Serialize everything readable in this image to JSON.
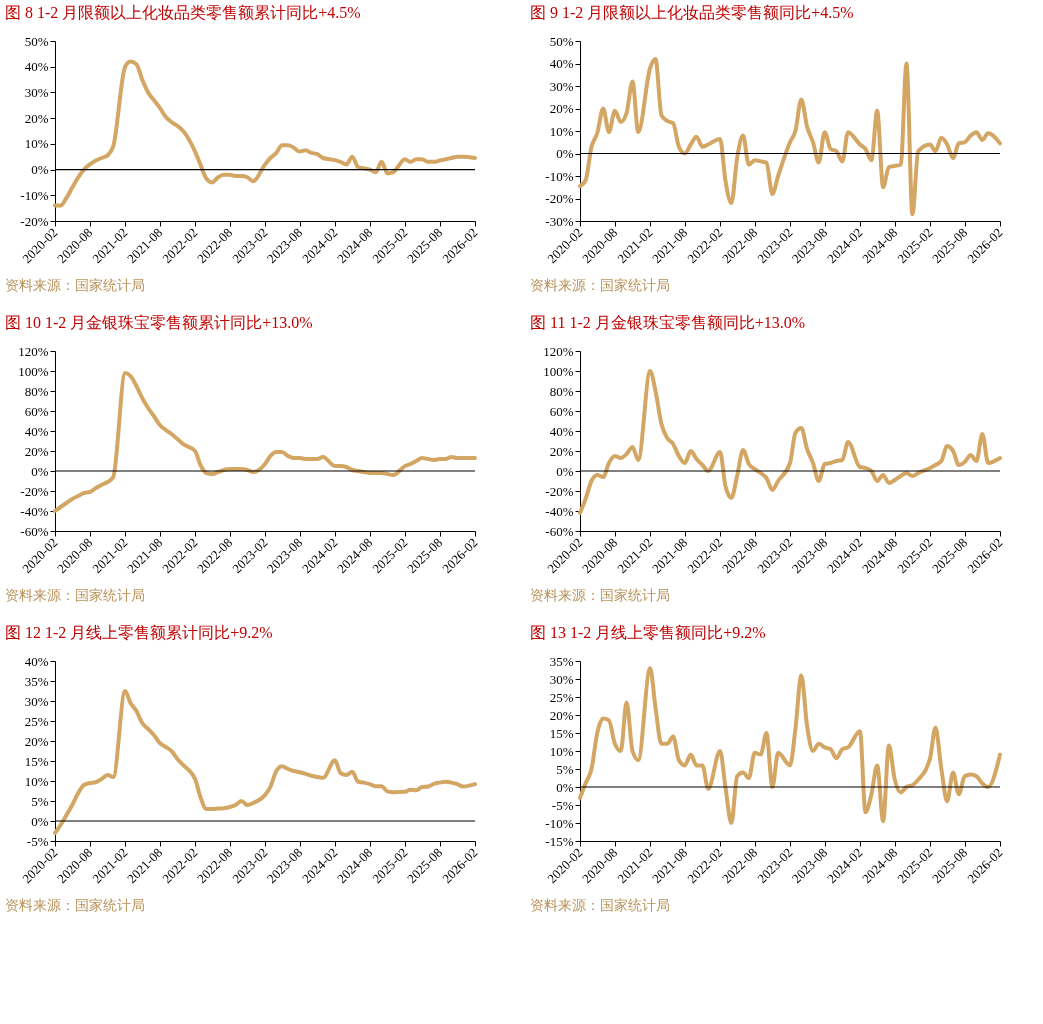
{
  "chart_data": [
    {
      "type": "line",
      "title": "图 8 1-2 月限额以上化妆品类零售额累计同比+4.5%",
      "annotations": [
        "资料来源：国家统计局"
      ],
      "x": [
        "2020-02",
        "2020-03",
        "2020-04",
        "2020-05",
        "2020-06",
        "2020-07",
        "2020-08",
        "2020-09",
        "2020-10",
        "2020-11",
        "2020-12",
        "2021-02",
        "2021-03",
        "2021-04",
        "2021-05",
        "2021-06",
        "2021-07",
        "2021-08",
        "2021-09",
        "2021-10",
        "2021-11",
        "2021-12",
        "2022-02",
        "2022-03",
        "2022-04",
        "2022-05",
        "2022-06",
        "2022-07",
        "2022-08",
        "2022-09",
        "2022-10",
        "2022-11",
        "2022-12",
        "2023-02",
        "2023-03",
        "2023-04",
        "2023-05",
        "2023-06",
        "2023-07",
        "2023-08",
        "2023-09",
        "2023-10",
        "2023-11",
        "2023-12",
        "2024-02",
        "2024-03",
        "2024-04",
        "2024-05",
        "2024-06",
        "2024-07",
        "2024-08",
        "2024-09",
        "2024-10",
        "2024-11",
        "2024-12",
        "2025-02",
        "2025-03",
        "2025-04",
        "2025-05",
        "2025-06",
        "2025-07",
        "2025-08",
        "2025-09",
        "2025-10",
        "2025-11",
        "2025-12",
        "2026-02"
      ],
      "series": [
        {
          "color": "#d4a664",
          "values": [
            -14,
            -14,
            -11,
            -7,
            -3,
            0,
            2,
            3.5,
            4.5,
            5.5,
            9,
            40,
            42,
            41,
            35,
            30,
            27,
            24,
            20.5,
            18.5,
            17,
            15,
            7,
            2,
            -3.5,
            -5,
            -3,
            -2,
            -2,
            -2.5,
            -2.5,
            -3,
            -4.5,
            2,
            4.5,
            6.5,
            9.5,
            9.5,
            8.5,
            7,
            7.5,
            6.5,
            6,
            4.5,
            3.7,
            3,
            2,
            5,
            1,
            0.5,
            0,
            -1,
            3,
            -1.5,
            -1,
            4,
            3,
            4,
            4,
            3,
            3,
            3.5,
            4,
            4.5,
            5,
            5,
            4.5
          ]
        }
      ],
      "xlim": [
        "2020-02",
        "2026-02"
      ],
      "xticks": [
        "2020-02",
        "2020-08",
        "2021-02",
        "2021-08",
        "2022-02",
        "2022-08",
        "2023-02",
        "2023-08",
        "2024-02",
        "2024-08",
        "2025-02",
        "2025-08",
        "2026-02"
      ],
      "ylim": [
        -20,
        50
      ],
      "yticks": [
        {
          "value": -20,
          "label": "-20%"
        },
        {
          "value": -10,
          "label": "-10%"
        },
        {
          "value": 0,
          "label": "0%"
        },
        {
          "value": 10,
          "label": "10%"
        },
        {
          "value": 20,
          "label": "20%"
        },
        {
          "value": 30,
          "label": "30%"
        },
        {
          "value": 40,
          "label": "40%"
        },
        {
          "value": 50,
          "label": "50%"
        }
      ]
    },
    {
      "type": "line",
      "title": "图 9 1-2 月限额以上化妆品类零售额同比+4.5%",
      "annotations": [
        "资料来源：国家统计局"
      ],
      "x": [
        "2020-02",
        "2020-03",
        "2020-04",
        "2020-05",
        "2020-06",
        "2020-07",
        "2020-08",
        "2020-09",
        "2020-10",
        "2020-11",
        "2020-12",
        "2021-02",
        "2021-03",
        "2021-04",
        "2021-05",
        "2021-06",
        "2021-07",
        "2021-08",
        "2021-09",
        "2021-10",
        "2021-11",
        "2021-12",
        "2022-02",
        "2022-03",
        "2022-04",
        "2022-05",
        "2022-06",
        "2022-07",
        "2022-08",
        "2022-09",
        "2022-10",
        "2022-11",
        "2022-12",
        "2023-02",
        "2023-03",
        "2023-04",
        "2023-05",
        "2023-06",
        "2023-07",
        "2023-08",
        "2023-09",
        "2023-10",
        "2023-11",
        "2023-12",
        "2024-02",
        "2024-03",
        "2024-04",
        "2024-05",
        "2024-06",
        "2024-07",
        "2024-08",
        "2024-09",
        "2024-10",
        "2024-11",
        "2024-12",
        "2025-02",
        "2025-03",
        "2025-04",
        "2025-05",
        "2025-06",
        "2025-07",
        "2025-08",
        "2025-09",
        "2025-10",
        "2025-11",
        "2025-12",
        "2026-02"
      ],
      "series": [
        {
          "color": "#d4a664",
          "values": [
            -14.5,
            -12,
            3,
            9,
            20,
            9.5,
            19,
            14,
            18,
            32,
            9.5,
            38,
            42,
            17,
            14.5,
            13.5,
            3,
            0,
            4,
            7.5,
            3,
            4,
            6.5,
            -12,
            -22,
            -2,
            8,
            -5,
            -3,
            -3.5,
            -4,
            -18,
            -10,
            5,
            10,
            24,
            12,
            5,
            -4,
            9.5,
            2,
            1,
            -3.5,
            9.5,
            4,
            2,
            -3,
            19,
            -15,
            -6,
            -5.5,
            -5,
            40,
            -27,
            1,
            4,
            1,
            7,
            4,
            -2,
            4.5,
            5,
            8,
            9.5,
            6,
            9,
            4.5
          ]
        }
      ],
      "xlim": [
        "2020-02",
        "2026-02"
      ],
      "xticks": [
        "2020-02",
        "2020-08",
        "2021-02",
        "2021-08",
        "2022-02",
        "2022-08",
        "2023-02",
        "2023-08",
        "2024-02",
        "2024-08",
        "2025-02",
        "2025-08",
        "2026-02"
      ],
      "ylim": [
        -30,
        50
      ],
      "yticks": [
        {
          "value": -30,
          "label": "-30%"
        },
        {
          "value": -20,
          "label": "-20%"
        },
        {
          "value": -10,
          "label": "-10%"
        },
        {
          "value": 0,
          "label": "0%"
        },
        {
          "value": 10,
          "label": "10%"
        },
        {
          "value": 20,
          "label": "20%"
        },
        {
          "value": 30,
          "label": "30%"
        },
        {
          "value": 40,
          "label": "40%"
        },
        {
          "value": 50,
          "label": "50%"
        }
      ]
    },
    {
      "type": "line",
      "title": "图 10 1-2 月金银珠宝零售额累计同比+13.0%",
      "annotations": [
        "资料来源：国家统计局"
      ],
      "x": [
        "2020-02",
        "2020-03",
        "2020-04",
        "2020-05",
        "2020-06",
        "2020-07",
        "2020-08",
        "2020-09",
        "2020-10",
        "2020-11",
        "2020-12",
        "2021-02",
        "2021-03",
        "2021-04",
        "2021-05",
        "2021-06",
        "2021-07",
        "2021-08",
        "2021-09",
        "2021-10",
        "2021-11",
        "2021-12",
        "2022-02",
        "2022-03",
        "2022-04",
        "2022-05",
        "2022-06",
        "2022-07",
        "2022-08",
        "2022-09",
        "2022-10",
        "2022-11",
        "2022-12",
        "2023-02",
        "2023-03",
        "2023-04",
        "2023-05",
        "2023-06",
        "2023-07",
        "2023-08",
        "2023-09",
        "2023-10",
        "2023-11",
        "2023-12",
        "2024-02",
        "2024-03",
        "2024-04",
        "2024-05",
        "2024-06",
        "2024-07",
        "2024-08",
        "2024-09",
        "2024-10",
        "2024-11",
        "2024-12",
        "2025-02",
        "2025-03",
        "2025-04",
        "2025-05",
        "2025-06",
        "2025-07",
        "2025-08",
        "2025-09",
        "2025-10",
        "2025-11",
        "2025-12",
        "2026-02"
      ],
      "series": [
        {
          "color": "#d4a664",
          "values": [
            -40,
            -36,
            -32,
            -28,
            -25,
            -22,
            -21,
            -17,
            -14,
            -11,
            -6,
            98,
            95,
            85,
            73,
            63,
            55,
            46,
            41,
            37,
            32,
            27,
            20,
            6,
            -2,
            -3,
            -1,
            1,
            2,
            2,
            2,
            1,
            -1,
            7,
            15,
            19,
            19,
            15,
            13,
            13,
            12,
            12,
            12,
            14,
            5,
            5,
            4,
            1,
            0,
            -1,
            -2,
            -2,
            -2,
            -3,
            -4,
            5,
            7,
            10,
            13,
            12,
            11,
            12,
            12,
            14,
            13,
            13,
            13
          ]
        }
      ],
      "xlim": [
        "2020-02",
        "2026-02"
      ],
      "xticks": [
        "2020-02",
        "2020-08",
        "2021-02",
        "2021-08",
        "2022-02",
        "2022-08",
        "2023-02",
        "2023-08",
        "2024-02",
        "2024-08",
        "2025-02",
        "2025-08",
        "2026-02"
      ],
      "ylim": [
        -60,
        120
      ],
      "yticks": [
        {
          "value": -60,
          "label": "-60%"
        },
        {
          "value": -40,
          "label": "-40%"
        },
        {
          "value": -20,
          "label": "-20%"
        },
        {
          "value": 0,
          "label": "0%"
        },
        {
          "value": 20,
          "label": "20%"
        },
        {
          "value": 40,
          "label": "40%"
        },
        {
          "value": 60,
          "label": "60%"
        },
        {
          "value": 80,
          "label": "80%"
        },
        {
          "value": 100,
          "label": "100%"
        },
        {
          "value": 120,
          "label": "120%"
        }
      ]
    },
    {
      "type": "line",
      "title": "图 11 1-2 月金银珠宝零售额同比+13.0%",
      "annotations": [
        "资料来源：国家统计局"
      ],
      "x": [
        "2020-02",
        "2020-03",
        "2020-04",
        "2020-05",
        "2020-06",
        "2020-07",
        "2020-08",
        "2020-09",
        "2020-10",
        "2020-11",
        "2020-12",
        "2021-02",
        "2021-03",
        "2021-04",
        "2021-05",
        "2021-06",
        "2021-07",
        "2021-08",
        "2021-09",
        "2021-10",
        "2021-11",
        "2021-12",
        "2022-02",
        "2022-03",
        "2022-04",
        "2022-05",
        "2022-06",
        "2022-07",
        "2022-08",
        "2022-09",
        "2022-10",
        "2022-11",
        "2022-12",
        "2023-02",
        "2023-03",
        "2023-04",
        "2023-05",
        "2023-06",
        "2023-07",
        "2023-08",
        "2023-09",
        "2023-10",
        "2023-11",
        "2023-12",
        "2024-02",
        "2024-03",
        "2024-04",
        "2024-05",
        "2024-06",
        "2024-07",
        "2024-08",
        "2024-09",
        "2024-10",
        "2024-11",
        "2024-12",
        "2025-02",
        "2025-03",
        "2025-04",
        "2025-05",
        "2025-06",
        "2025-07",
        "2025-08",
        "2025-09",
        "2025-10",
        "2025-11",
        "2025-12",
        "2026-02"
      ],
      "series": [
        {
          "color": "#d4a664",
          "values": [
            -42,
            -28,
            -10,
            -4,
            -6,
            8,
            15,
            13,
            17,
            24,
            11,
            100,
            80,
            47,
            33,
            27,
            15,
            8,
            20,
            12,
            6,
            0,
            19,
            -15,
            -27,
            -5,
            21,
            7,
            2,
            -2,
            -7,
            -19,
            -10,
            8,
            38,
            43,
            22,
            8,
            -10,
            7,
            8,
            10,
            11,
            29,
            4,
            3,
            0,
            -10,
            -4,
            -12,
            -9,
            -5,
            -2,
            -5,
            -2,
            3,
            6,
            10,
            25,
            20,
            6,
            9,
            16,
            10,
            37,
            8,
            13
          ]
        }
      ],
      "xlim": [
        "2020-02",
        "2026-02"
      ],
      "xticks": [
        "2020-02",
        "2020-08",
        "2021-02",
        "2021-08",
        "2022-02",
        "2022-08",
        "2023-02",
        "2023-08",
        "2024-02",
        "2024-08",
        "2025-02",
        "2025-08",
        "2026-02"
      ],
      "ylim": [
        -60,
        120
      ],
      "yticks": [
        {
          "value": -60,
          "label": "-60%"
        },
        {
          "value": -40,
          "label": "-40%"
        },
        {
          "value": -20,
          "label": "-20%"
        },
        {
          "value": 0,
          "label": "0%"
        },
        {
          "value": 20,
          "label": "20%"
        },
        {
          "value": 40,
          "label": "40%"
        },
        {
          "value": 60,
          "label": "60%"
        },
        {
          "value": 80,
          "label": "80%"
        },
        {
          "value": 100,
          "label": "100%"
        },
        {
          "value": 120,
          "label": "120%"
        }
      ]
    },
    {
      "type": "line",
      "title": "图 12 1-2 月线上零售额累计同比+9.2%",
      "annotations": [
        "资料来源：国家统计局"
      ],
      "x": [
        "2020-02",
        "2020-03",
        "2020-04",
        "2020-05",
        "2020-06",
        "2020-07",
        "2020-08",
        "2020-09",
        "2020-10",
        "2020-11",
        "2020-12",
        "2021-02",
        "2021-03",
        "2021-04",
        "2021-05",
        "2021-06",
        "2021-07",
        "2021-08",
        "2021-09",
        "2021-10",
        "2021-11",
        "2021-12",
        "2022-02",
        "2022-03",
        "2022-04",
        "2022-05",
        "2022-06",
        "2022-07",
        "2022-08",
        "2022-09",
        "2022-10",
        "2022-11",
        "2022-12",
        "2023-02",
        "2023-03",
        "2023-04",
        "2023-05",
        "2023-06",
        "2023-07",
        "2023-08",
        "2023-09",
        "2023-10",
        "2023-11",
        "2023-12",
        "2024-02",
        "2024-03",
        "2024-04",
        "2024-05",
        "2024-06",
        "2024-07",
        "2024-08",
        "2024-09",
        "2024-10",
        "2024-11",
        "2024-12",
        "2025-02",
        "2025-03",
        "2025-04",
        "2025-05",
        "2025-06",
        "2025-07",
        "2025-08",
        "2025-09",
        "2025-10",
        "2025-11",
        "2025-12",
        "2026-02"
      ],
      "series": [
        {
          "color": "#d4a664",
          "values": [
            -3,
            -1,
            1.5,
            4,
            7,
            9,
            9.5,
            9.7,
            10.5,
            11.5,
            11,
            32.5,
            29.5,
            27.5,
            24.5,
            23,
            21.5,
            19.5,
            18.5,
            17.5,
            15.5,
            14,
            10.5,
            6,
            3,
            3,
            3.1,
            3.2,
            3.5,
            4,
            5,
            4,
            4.5,
            6.5,
            8.5,
            12.5,
            13.7,
            13,
            12.5,
            12.2,
            11.8,
            11.3,
            11,
            10.8,
            15.2,
            12,
            11.5,
            12.3,
            9.8,
            9.6,
            9.2,
            8.7,
            8.7,
            7.4,
            7.2,
            7.3,
            7.8,
            7.7,
            8.5,
            8.6,
            9.3,
            9.6,
            9.8,
            9.6,
            9.2,
            8.6,
            9.2
          ]
        }
      ],
      "xlim": [
        "2020-02",
        "2026-02"
      ],
      "xticks": [
        "2020-02",
        "2020-08",
        "2021-02",
        "2021-08",
        "2022-02",
        "2022-08",
        "2023-02",
        "2023-08",
        "2024-02",
        "2024-08",
        "2025-02",
        "2025-08",
        "2026-02"
      ],
      "ylim": [
        -5,
        40
      ],
      "yticks": [
        {
          "value": -5,
          "label": "-5%"
        },
        {
          "value": 0,
          "label": "0%"
        },
        {
          "value": 5,
          "label": "5%"
        },
        {
          "value": 10,
          "label": "10%"
        },
        {
          "value": 15,
          "label": "15%"
        },
        {
          "value": 20,
          "label": "20%"
        },
        {
          "value": 25,
          "label": "25%"
        },
        {
          "value": 30,
          "label": "30%"
        },
        {
          "value": 35,
          "label": "35%"
        },
        {
          "value": 40,
          "label": "40%"
        }
      ]
    },
    {
      "type": "line",
      "title": "图 13 1-2 月线上零售额同比+9.2%",
      "annotations": [
        "资料来源：国家统计局"
      ],
      "x": [
        "2020-02",
        "2020-03",
        "2020-04",
        "2020-05",
        "2020-06",
        "2020-07",
        "2020-08",
        "2020-09",
        "2020-10",
        "2020-11",
        "2020-12",
        "2021-02",
        "2021-03",
        "2021-04",
        "2021-05",
        "2021-06",
        "2021-07",
        "2021-08",
        "2021-09",
        "2021-10",
        "2021-11",
        "2021-12",
        "2022-02",
        "2022-03",
        "2022-04",
        "2022-05",
        "2022-06",
        "2022-07",
        "2022-08",
        "2022-09",
        "2022-10",
        "2022-11",
        "2022-12",
        "2023-02",
        "2023-03",
        "2023-04",
        "2023-05",
        "2023-06",
        "2023-07",
        "2023-08",
        "2023-09",
        "2023-10",
        "2023-11",
        "2023-12",
        "2024-02",
        "2024-03",
        "2024-04",
        "2024-05",
        "2024-06",
        "2024-07",
        "2024-08",
        "2024-09",
        "2024-10",
        "2024-11",
        "2024-12",
        "2025-02",
        "2025-03",
        "2025-04",
        "2025-05",
        "2025-06",
        "2025-07",
        "2025-08",
        "2025-09",
        "2025-10",
        "2025-11",
        "2025-12",
        "2026-02"
      ],
      "series": [
        {
          "color": "#d4a664",
          "values": [
            -3,
            1,
            5,
            15,
            19,
            18.5,
            12,
            10,
            23.5,
            10,
            7.5,
            33,
            22,
            12,
            12,
            14,
            7.5,
            6,
            9,
            6,
            6,
            -0.5,
            10,
            0,
            -10,
            3,
            4,
            2.5,
            9.5,
            9,
            15,
            0,
            9.5,
            6,
            16,
            31,
            17,
            10,
            12,
            11,
            10.5,
            8,
            10.5,
            11,
            15.5,
            -7,
            -2,
            6,
            -9.5,
            11.5,
            2,
            -1.5,
            0,
            0.5,
            2,
            8,
            16.5,
            5,
            -4,
            4,
            -2,
            3,
            3.5,
            3,
            1,
            0,
            9
          ]
        }
      ],
      "xlim": [
        "2020-02",
        "2026-02"
      ],
      "xticks": [
        "2020-02",
        "2020-08",
        "2021-02",
        "2021-08",
        "2022-02",
        "2022-08",
        "2023-02",
        "2023-08",
        "2024-02",
        "2024-08",
        "2025-02",
        "2025-08",
        "2026-02"
      ],
      "ylim": [
        -15,
        35
      ],
      "yticks": [
        {
          "value": -15,
          "label": "-15%"
        },
        {
          "value": -10,
          "label": "-10%"
        },
        {
          "value": -5,
          "label": "-5%"
        },
        {
          "value": 0,
          "label": "0%"
        },
        {
          "value": 5,
          "label": "5%"
        },
        {
          "value": 10,
          "label": "10%"
        },
        {
          "value": 15,
          "label": "15%"
        },
        {
          "value": 20,
          "label": "20%"
        },
        {
          "value": 25,
          "label": "25%"
        },
        {
          "value": 30,
          "label": "30%"
        },
        {
          "value": 35,
          "label": "35%"
        }
      ]
    }
  ]
}
